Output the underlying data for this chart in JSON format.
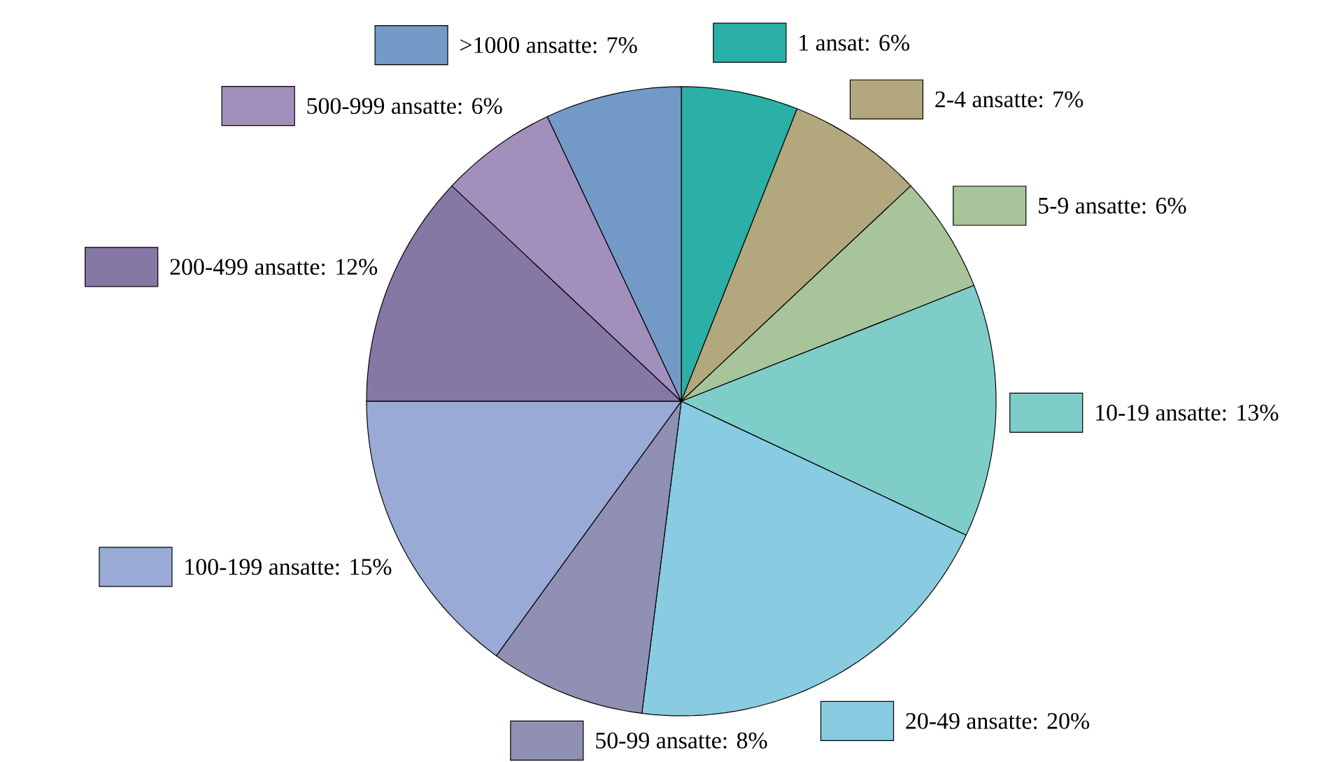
{
  "chart_data": {
    "type": "pie",
    "categories": [
      "1 ansat: 6%",
      "2-4 ansatte: 7%",
      "5-9 ansatte: 6%",
      "10-19 ansatte: 13%",
      "20-49 ansatte: 20%",
      "50-99 ansatte: 8%",
      "100-199 ansatte: 15%",
      "200-499 ansatte: 12%",
      "500-999 ansatte: 6%",
      ">1000 ansatte: 7%"
    ],
    "values": [
      6,
      7,
      6,
      13,
      20,
      8,
      15,
      12,
      6,
      7
    ],
    "colors": [
      "#2ab0a6",
      "#b3a87d",
      "#a8c49a",
      "#7ecdc8",
      "#89cbe0",
      "#9090b4",
      "#9aaad6",
      "#8678a4",
      "#a28fbc",
      "#7399c6"
    ],
    "legend": "right"
  }
}
